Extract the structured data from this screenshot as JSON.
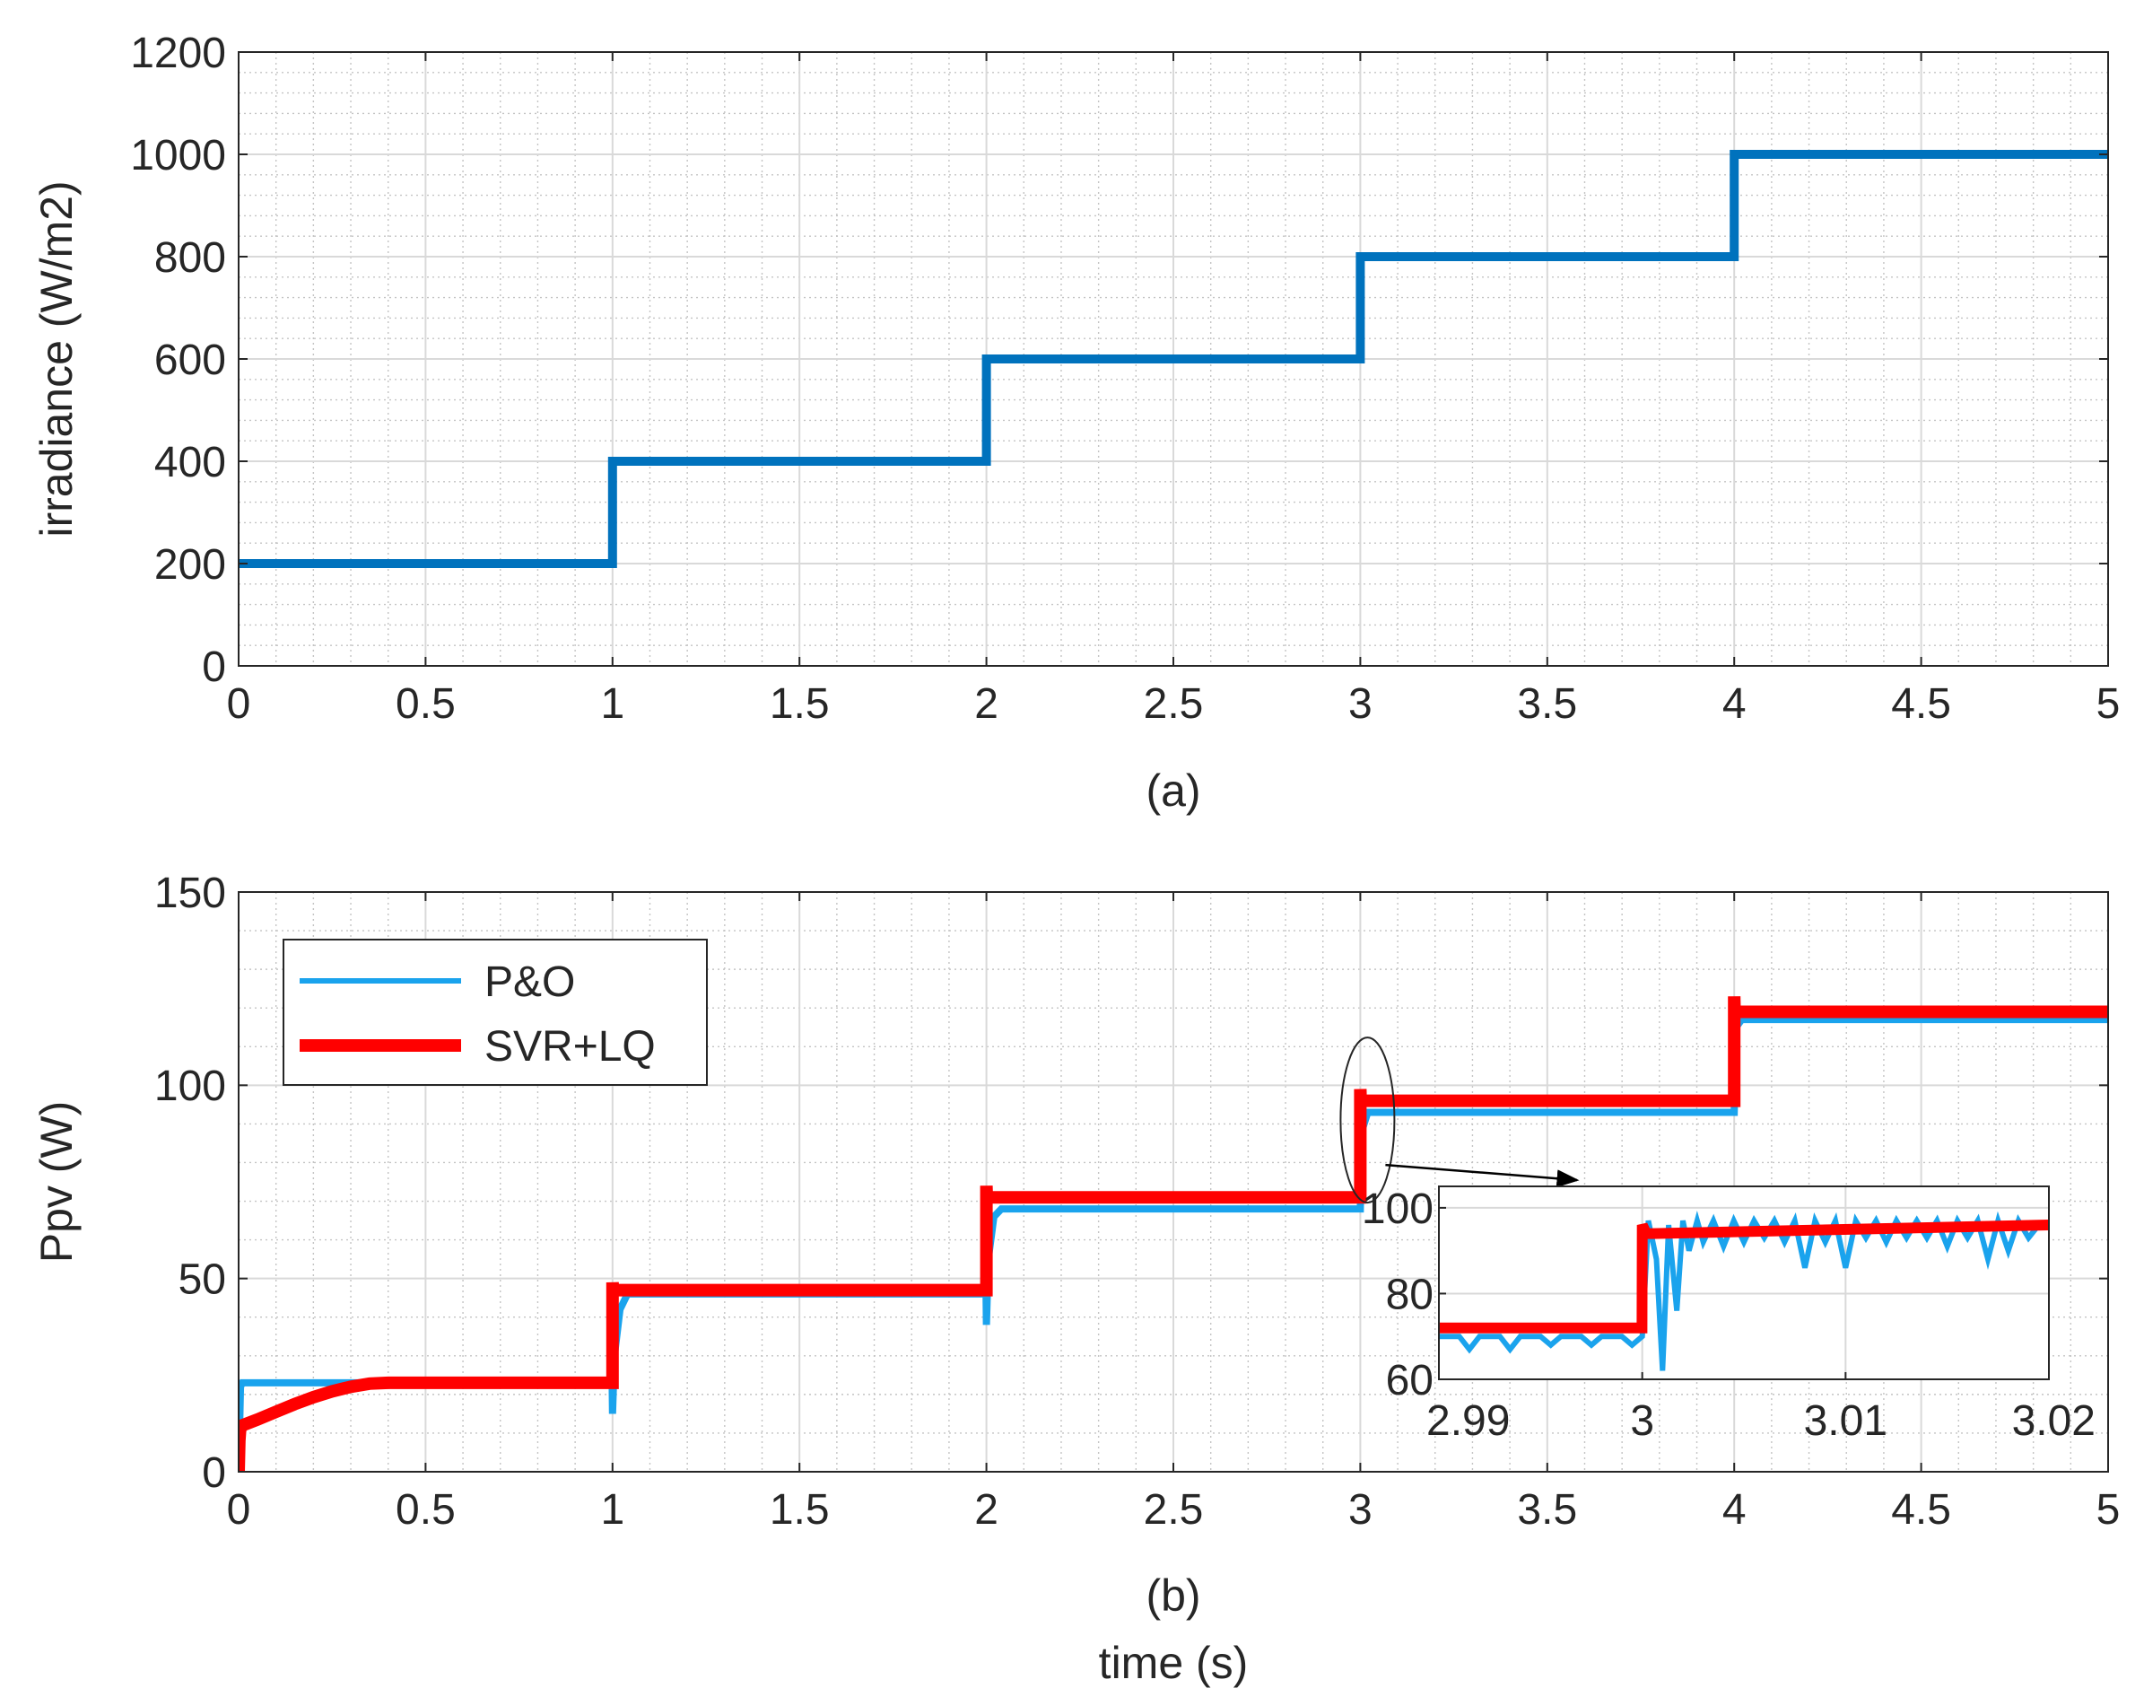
{
  "chart_data": [
    {
      "id": "a",
      "type": "line",
      "caption": "(a)",
      "xlabel": "",
      "ylabel": "irradiance (W/m2)",
      "xlim": [
        0,
        5
      ],
      "ylim": [
        0,
        1200
      ],
      "xticks": [
        0,
        0.5,
        1,
        1.5,
        2,
        2.5,
        3,
        3.5,
        4,
        4.5,
        5
      ],
      "xtick_labels": [
        "0",
        "0.5",
        "1",
        "1.5",
        "2",
        "2.5",
        "3",
        "3.5",
        "4",
        "4.5",
        "5"
      ],
      "yticks": [
        0,
        200,
        400,
        600,
        800,
        1000,
        1200
      ],
      "ytick_labels": [
        "0",
        "200",
        "400",
        "600",
        "800",
        "1000",
        "1200"
      ],
      "grid": true,
      "minor_grid": true,
      "series": [
        {
          "name": "irradiance",
          "color": "#0072bd",
          "x": [
            0,
            1,
            1,
            2,
            2,
            3,
            3,
            4,
            4,
            5
          ],
          "y": [
            200,
            200,
            400,
            400,
            600,
            600,
            800,
            800,
            1000,
            1000
          ]
        }
      ]
    },
    {
      "id": "b",
      "type": "line",
      "caption": "(b)",
      "xlabel": "time (s)",
      "ylabel": "Ppv (W)",
      "xlim": [
        0,
        5
      ],
      "ylim": [
        0,
        150
      ],
      "xticks": [
        0,
        0.5,
        1,
        1.5,
        2,
        2.5,
        3,
        3.5,
        4,
        4.5,
        5
      ],
      "xtick_labels": [
        "0",
        "0.5",
        "1",
        "1.5",
        "2",
        "2.5",
        "3",
        "3.5",
        "4",
        "4.5",
        "5"
      ],
      "yticks": [
        0,
        50,
        100,
        150
      ],
      "ytick_labels": [
        "0",
        "50",
        "100",
        "150"
      ],
      "grid": true,
      "minor_grid": true,
      "legend": {
        "position": "top-left",
        "entries": [
          "P&O",
          "SVR+LQ"
        ]
      },
      "series": [
        {
          "name": "P&O",
          "color": "#1aa3ed",
          "x": [
            0,
            0.005,
            0.01,
            0.04,
            0.3,
            0.35,
            0.999,
            1.0,
            1.005,
            1.02,
            1.04,
            1.999,
            2.0,
            2.005,
            2.02,
            2.04,
            2.999,
            3.0,
            3.005,
            3.01,
            3.02,
            3.999,
            4.0,
            4.005,
            4.02,
            5.0
          ],
          "y": [
            0,
            22,
            23,
            23,
            23,
            23,
            23,
            15,
            30,
            42,
            46,
            46,
            38,
            55,
            66,
            68,
            68,
            68,
            92,
            90,
            93,
            93,
            93,
            115,
            117,
            117
          ]
        },
        {
          "name": "SVR+LQ",
          "color": "#ff0000",
          "x": [
            0,
            0.002,
            0.004,
            0.01,
            0.05,
            0.1,
            0.15,
            0.2,
            0.25,
            0.3,
            0.35,
            0.4,
            0.5,
            0.999,
            1.0,
            1.0,
            1.001,
            1.003,
            1.999,
            2.0,
            2.0,
            2.001,
            2.003,
            2.999,
            3.0,
            3.0,
            3.001,
            3.003,
            3.999,
            4.0,
            4.0,
            4.001,
            4.003,
            5.0
          ],
          "y": [
            0,
            8,
            11,
            12,
            13.5,
            15.5,
            17.5,
            19.3,
            20.8,
            22,
            22.8,
            23,
            23,
            23,
            23,
            49,
            47,
            47,
            47,
            47,
            74,
            71,
            71,
            71,
            71,
            99,
            96,
            96,
            96,
            96,
            123,
            119,
            119,
            119
          ]
        }
      ],
      "inset": {
        "xlim": [
          2.99,
          3.02
        ],
        "ylim": [
          60,
          105
        ],
        "xticks": [
          2.99,
          3.0,
          3.01,
          3.02
        ],
        "xtick_labels": [
          "2.99",
          "3",
          "3.01",
          "3.02"
        ],
        "yticks": [
          60,
          80,
          100
        ],
        "ytick_labels": [
          "60",
          "80",
          "100"
        ],
        "grid": true,
        "series": [
          {
            "name": "P&O",
            "color": "#1aa3ed",
            "x": [
              2.99,
              2.991,
              2.9915,
              2.992,
              2.993,
              2.9935,
              2.994,
              2.995,
              2.9955,
              2.996,
              2.997,
              2.9975,
              2.998,
              2.999,
              2.9995,
              3.0,
              3.0003,
              3.0007,
              3.001,
              3.0013,
              3.0017,
              3.002,
              3.0023,
              3.0027,
              3.003,
              3.0035,
              3.004,
              3.0045,
              3.005,
              3.0055,
              3.006,
              3.0065,
              3.007,
              3.0075,
              3.008,
              3.0085,
              3.009,
              3.0095,
              3.01,
              3.0105,
              3.011,
              3.0115,
              3.012,
              3.0125,
              3.013,
              3.0135,
              3.014,
              3.0145,
              3.015,
              3.0155,
              3.016,
              3.0165,
              3.017,
              3.0175,
              3.018,
              3.0185,
              3.019,
              3.0195,
              3.02
            ],
            "y": [
              70,
              70,
              67,
              70,
              70,
              67,
              70,
              70,
              68,
              70,
              70,
              68,
              70,
              70,
              68,
              70,
              97,
              88,
              62,
              96,
              76,
              97,
              90,
              97,
              92,
              97,
              91,
              97,
              92,
              97,
              93,
              97,
              92,
              97,
              86,
              97,
              92,
              97,
              86,
              97,
              93,
              97,
              92,
              97,
              93,
              97,
              93,
              97,
              91,
              97,
              93,
              97,
              88,
              97,
              90,
              97,
              93,
              96,
              96
            ]
          },
          {
            "name": "SVR+LQ",
            "color": "#ff0000",
            "x": [
              2.99,
              2.99999,
              3.0,
              3.0002,
              3.0005,
              3.02
            ],
            "y": [
              72,
              72,
              96,
              94,
              94,
              96
            ]
          }
        ]
      }
    }
  ]
}
